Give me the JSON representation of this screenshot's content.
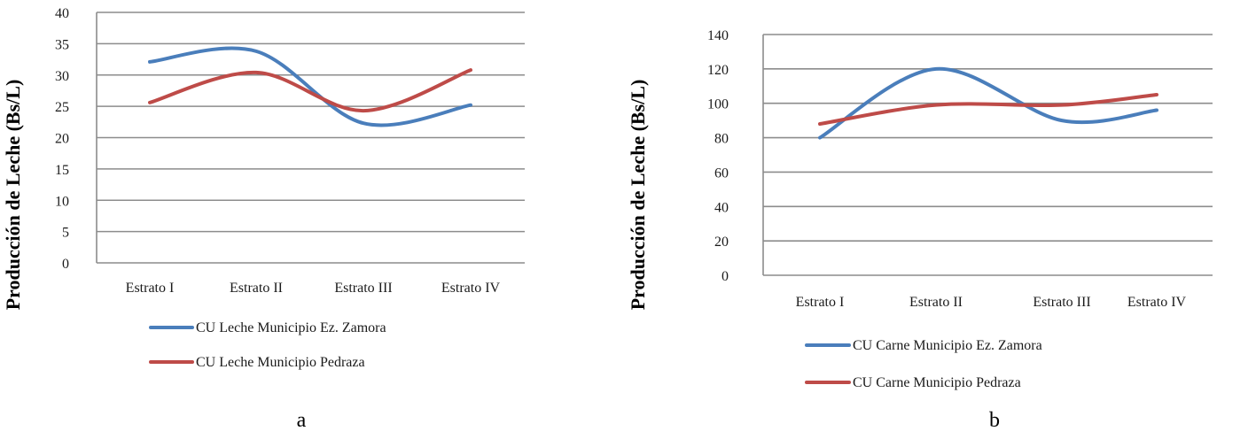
{
  "figure": {
    "panels": [
      {
        "id": "a",
        "caption": "a",
        "ylabel": "Producción de Leche (Bs/L)"
      },
      {
        "id": "b",
        "caption": "b",
        "ylabel": "Producción de Leche (Bs/L)"
      }
    ]
  },
  "chart_data": [
    {
      "type": "line",
      "title": "",
      "caption": "a",
      "xlabel": "",
      "ylabel": "Producción de Leche (Bs/L)",
      "categories": [
        "Estrato I",
        "Estrato II",
        "Estrato III",
        "Estrato IV"
      ],
      "yticks": [
        0,
        5,
        10,
        15,
        20,
        25,
        30,
        35,
        40
      ],
      "ylim": [
        0,
        40
      ],
      "grid": true,
      "smooth": true,
      "legend_position": "bottom",
      "series": [
        {
          "name": "CU Leche Municipio Ez. Zamora",
          "color": "#4a7ebb",
          "values": [
            32.1,
            33.8,
            22.3,
            25.2
          ]
        },
        {
          "name": "CU Leche Municipio Pedraza",
          "color": "#be4b48",
          "values": [
            25.6,
            30.4,
            24.3,
            30.8
          ]
        }
      ]
    },
    {
      "type": "line",
      "title": "",
      "caption": "b",
      "xlabel": "",
      "ylabel": "Producción de Leche (Bs/L)",
      "categories": [
        "Estrato I",
        "Estrato II",
        "Estrato III",
        "Estrato IV"
      ],
      "yticks": [
        0,
        20,
        40,
        60,
        80,
        100,
        120,
        140
      ],
      "ylim": [
        0,
        140
      ],
      "grid": true,
      "smooth": true,
      "legend_position": "bottom",
      "series": [
        {
          "name": "CU Carne Municipio Ez. Zamora",
          "color": "#4a7ebb",
          "values": [
            80,
            120,
            90,
            96
          ]
        },
        {
          "name": "CU Carne  Municipio Pedraza",
          "color": "#be4b48",
          "values": [
            88,
            99,
            99,
            105
          ]
        }
      ]
    }
  ]
}
